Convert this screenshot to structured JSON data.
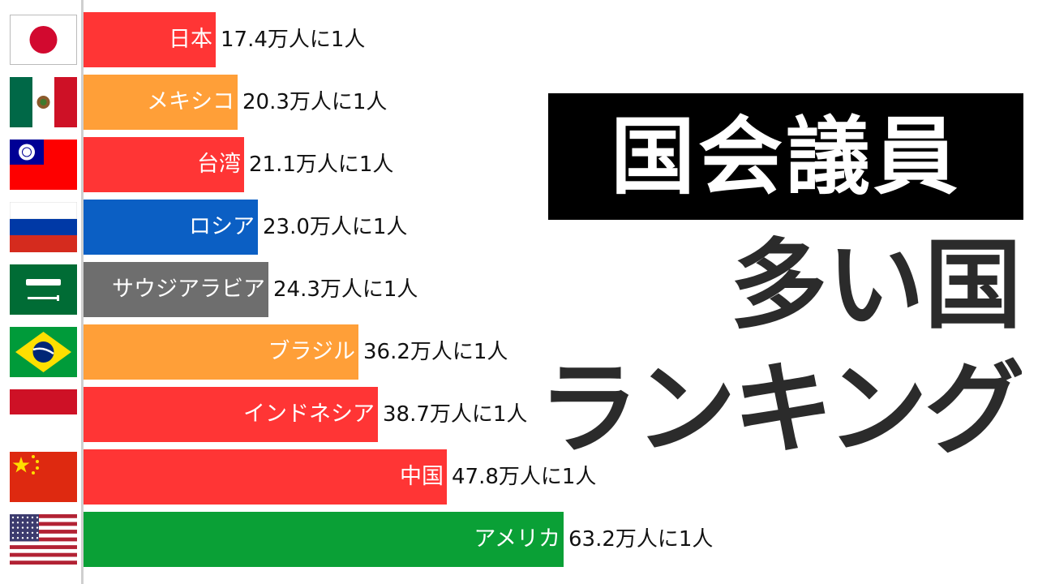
{
  "chart_data": {
    "type": "bar",
    "orientation": "horizontal",
    "unit_suffix": "万人に1人",
    "categories": [
      "日本",
      "メキシコ",
      "台湾",
      "ロシア",
      "サウジアラビア",
      "ブラジル",
      "インドネシア",
      "中国",
      "アメリカ"
    ],
    "values": [
      17.4,
      20.3,
      21.1,
      23.0,
      24.3,
      36.2,
      38.7,
      47.8,
      63.2
    ],
    "value_labels": [
      "17.4万人に1人",
      "20.3万人に1人",
      "21.1万人に1人",
      "23.0万人に1人",
      "24.3万人に1人",
      "36.2万人に1人",
      "38.7万人に1人",
      "47.8万人に1人",
      "63.2万人に1人"
    ],
    "bar_colors": [
      "#ff3535",
      "#ff9f38",
      "#ff3535",
      "#0b5fc4",
      "#6e6e6e",
      "#ff9f38",
      "#ff3535",
      "#ff3535",
      "#0aa036"
    ],
    "flags": [
      "japan-flag",
      "mexico-flag",
      "taiwan-flag",
      "russia-flag",
      "saudi-arabia-flag",
      "brazil-flag",
      "indonesia-flag",
      "china-flag",
      "usa-flag"
    ],
    "xlim": [
      0,
      63.2
    ],
    "grid": false
  },
  "title": {
    "line1": "国会議員",
    "line2": "多い国",
    "line3": "ランキング"
  }
}
